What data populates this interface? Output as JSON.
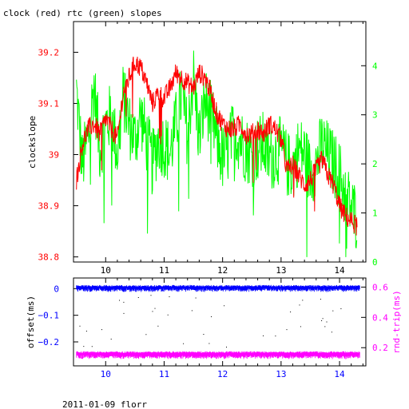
{
  "title": "clock (red) rtc (green) slopes",
  "footer": "2011-01-09 florr",
  "colors": {
    "clock": "#ff0000",
    "rtc": "#00ff00",
    "offset": "#0000ff",
    "roundtrip": "#ff00ff",
    "axis_black": "#000000",
    "axis_left_ticks": "#ff0000",
    "axis_right_ticks": "#00ff00",
    "bottom_ticks": "#0000ff"
  },
  "chart_data": [
    {
      "type": "line",
      "title": "clock (red) rtc (green) slopes",
      "ylabel": "clockslope",
      "xlim": [
        9.45,
        14.45
      ],
      "x_ticks": [
        "10",
        "11",
        "12",
        "13",
        "14"
      ],
      "x_tick_values": [
        10,
        11,
        12,
        13,
        14
      ],
      "ylim_left": [
        38.79,
        39.26
      ],
      "ylim_right": [
        0,
        4.9
      ],
      "y_ticks_left": [
        "38.8",
        "38.9",
        "39",
        "39.1",
        "39.2"
      ],
      "y_tick_values_left": [
        38.8,
        38.9,
        39.0,
        39.1,
        39.2
      ],
      "y_ticks_right": [
        "0",
        "1",
        "2",
        "3",
        "4"
      ],
      "y_tick_values_right": [
        0,
        1,
        2,
        3,
        4
      ],
      "grid": false,
      "series": [
        {
          "name": "clock",
          "axis": "left",
          "x": [
            9.5,
            9.6,
            9.7,
            9.8,
            9.9,
            10.0,
            10.1,
            10.2,
            10.3,
            10.4,
            10.5,
            10.6,
            10.7,
            10.8,
            10.9,
            11.0,
            11.1,
            11.2,
            11.3,
            11.4,
            11.5,
            11.6,
            11.7,
            11.8,
            11.9,
            12.0,
            12.1,
            12.2,
            12.3,
            12.4,
            12.5,
            12.6,
            12.7,
            12.8,
            12.9,
            13.0,
            13.1,
            13.2,
            13.3,
            13.4,
            13.5,
            13.6,
            13.7,
            13.8,
            13.9,
            14.0,
            14.1,
            14.2,
            14.3
          ],
          "values": [
            38.95,
            39.02,
            39.05,
            39.06,
            39.04,
            39.07,
            39.05,
            39.03,
            39.12,
            39.15,
            39.18,
            39.17,
            39.14,
            39.1,
            39.12,
            39.11,
            39.13,
            39.16,
            39.15,
            39.14,
            39.13,
            39.16,
            39.15,
            39.12,
            39.08,
            39.06,
            39.05,
            39.05,
            39.06,
            39.04,
            39.04,
            39.05,
            39.04,
            39.06,
            39.05,
            39.03,
            38.97,
            38.98,
            38.96,
            38.94,
            38.95,
            38.97,
            38.99,
            38.96,
            38.94,
            38.9,
            38.88,
            38.87,
            38.86
          ]
        },
        {
          "name": "rtc",
          "axis": "right",
          "x": [
            9.5,
            9.6,
            9.7,
            9.8,
            9.9,
            10.0,
            10.1,
            10.2,
            10.3,
            10.4,
            10.5,
            10.6,
            10.7,
            10.8,
            10.9,
            11.0,
            11.1,
            11.2,
            11.3,
            11.4,
            11.5,
            11.6,
            11.7,
            11.8,
            11.9,
            12.0,
            12.1,
            12.2,
            12.3,
            12.4,
            12.5,
            12.6,
            12.7,
            12.8,
            12.9,
            13.0,
            13.1,
            13.2,
            13.3,
            13.4,
            13.5,
            13.6,
            13.7,
            13.8,
            13.9,
            14.0,
            14.1,
            14.2,
            14.3
          ],
          "values": [
            3.5,
            2.0,
            2.5,
            3.6,
            2.3,
            2.8,
            3.0,
            2.2,
            3.4,
            2.8,
            2.5,
            3.0,
            2.5,
            2.0,
            2.5,
            2.4,
            2.2,
            2.8,
            3.4,
            2.6,
            3.8,
            2.5,
            3.3,
            3.0,
            2.5,
            2.1,
            2.3,
            2.7,
            2.5,
            2.3,
            2.2,
            2.3,
            2.4,
            2.1,
            2.2,
            2.3,
            2.0,
            1.9,
            2.3,
            2.2,
            1.8,
            2.0,
            2.4,
            2.2,
            2.0,
            1.8,
            1.4,
            1.1,
            0.9
          ]
        }
      ]
    },
    {
      "type": "scatter",
      "ylabel_left": "offset(ms)",
      "ylabel_right": "rnd-trip(ms)",
      "xlim": [
        9.45,
        14.45
      ],
      "x_ticks": [
        "10",
        "11",
        "12",
        "13",
        "14"
      ],
      "x_tick_values": [
        10,
        11,
        12,
        13,
        14
      ],
      "ylim_left": [
        -0.29,
        0.04
      ],
      "ylim_right": [
        0.08,
        0.66
      ],
      "y_ticks_left": [
        "0",
        "−0.1",
        "−0.2"
      ],
      "y_tick_values_left": [
        0,
        -0.1,
        -0.2
      ],
      "y_ticks_right": [
        "0.6",
        "0.4",
        "0.2"
      ],
      "y_tick_values_right": [
        0.6,
        0.4,
        0.2
      ],
      "grid": false,
      "series": [
        {
          "name": "offset",
          "axis": "left",
          "x": [
            9.5,
            14.35
          ],
          "values": [
            0.0,
            0.0
          ]
        },
        {
          "name": "rnd-trip",
          "axis": "right",
          "x": [
            9.5,
            14.35
          ],
          "values": [
            0.15,
            0.15
          ]
        }
      ]
    }
  ]
}
